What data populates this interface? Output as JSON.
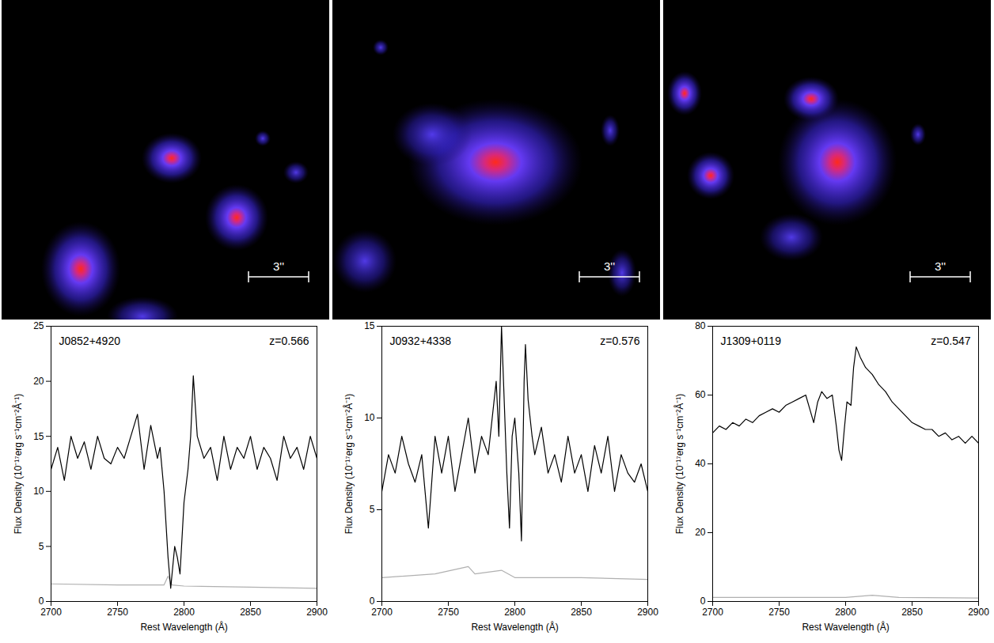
{
  "chart_data": [
    {
      "type": "line",
      "title": "J0852+4920",
      "annotation": "z=0.566",
      "scale_bar": "3''",
      "xlabel": "Rest Wavelength (Å)",
      "ylabel": "Flux Density (10⁻¹⁷erg s⁻¹cm⁻²Å⁻¹)",
      "xlim": [
        2700,
        2900
      ],
      "xticks": [
        2700,
        2750,
        2800,
        2850,
        2900
      ],
      "ylim": [
        0,
        25
      ],
      "yticks": [
        0,
        5,
        10,
        15,
        20,
        25
      ],
      "series": [
        {
          "color": "#000000",
          "x": [
            2700,
            2705,
            2710,
            2715,
            2720,
            2725,
            2730,
            2735,
            2740,
            2745,
            2750,
            2755,
            2760,
            2765,
            2770,
            2775,
            2780,
            2782,
            2785,
            2788,
            2790,
            2793,
            2795,
            2797,
            2800,
            2803,
            2805,
            2807,
            2810,
            2815,
            2820,
            2825,
            2830,
            2835,
            2840,
            2845,
            2850,
            2855,
            2860,
            2865,
            2870,
            2875,
            2880,
            2885,
            2890,
            2895,
            2900
          ],
          "values": [
            12,
            14,
            11,
            15,
            13,
            14.5,
            12,
            15,
            13,
            12.5,
            14,
            13,
            15,
            17,
            12,
            16,
            13,
            14,
            10,
            4,
            1.2,
            5,
            4,
            2.5,
            9,
            12,
            15,
            20.5,
            15,
            13,
            14,
            11,
            15,
            12,
            14,
            13,
            15,
            12,
            14,
            13,
            11,
            15,
            13,
            14,
            12,
            15,
            13
          ]
        },
        {
          "color": "#b0b0b0",
          "x": [
            2700,
            2750,
            2785,
            2788,
            2791,
            2800,
            2850,
            2900
          ],
          "values": [
            1.6,
            1.5,
            1.5,
            2.3,
            1.5,
            1.4,
            1.3,
            1.2
          ]
        }
      ]
    },
    {
      "type": "line",
      "title": "J0932+4338",
      "annotation": "z=0.576",
      "scale_bar": "3''",
      "xlabel": "Rest Wavelength (Å)",
      "ylabel": "Flux Density (10⁻¹⁷erg s⁻¹cm⁻²Å⁻¹)",
      "xlim": [
        2700,
        2900
      ],
      "xticks": [
        2700,
        2750,
        2800,
        2850,
        2900
      ],
      "ylim": [
        0,
        15
      ],
      "yticks": [
        0,
        5,
        10,
        15
      ],
      "series": [
        {
          "color": "#000000",
          "x": [
            2700,
            2705,
            2710,
            2715,
            2720,
            2725,
            2730,
            2735,
            2740,
            2745,
            2750,
            2755,
            2760,
            2765,
            2770,
            2775,
            2780,
            2783,
            2786,
            2788,
            2790,
            2792,
            2794,
            2796,
            2798,
            2800,
            2803,
            2805,
            2807,
            2808,
            2810,
            2813,
            2815,
            2820,
            2825,
            2830,
            2835,
            2840,
            2845,
            2850,
            2855,
            2860,
            2865,
            2870,
            2875,
            2880,
            2885,
            2890,
            2895,
            2900
          ],
          "values": [
            6,
            8,
            7,
            9,
            7.5,
            6.5,
            8,
            4,
            9,
            7,
            9,
            6,
            8,
            10,
            7,
            9,
            8,
            10,
            12,
            9,
            15,
            11,
            7,
            4,
            9,
            10,
            7,
            3.3,
            12,
            14,
            11,
            9,
            8,
            9.5,
            7,
            8,
            6.5,
            9,
            7,
            8,
            6,
            8.5,
            7,
            9,
            6,
            8,
            7,
            6.5,
            7.5,
            6
          ]
        },
        {
          "color": "#b0b0b0",
          "x": [
            2700,
            2740,
            2765,
            2770,
            2790,
            2800,
            2850,
            2900
          ],
          "values": [
            1.3,
            1.5,
            1.9,
            1.5,
            1.7,
            1.3,
            1.3,
            1.2
          ]
        }
      ]
    },
    {
      "type": "line",
      "title": "J1309+0119",
      "annotation": "z=0.547",
      "scale_bar": "3''",
      "xlabel": "Rest Wavelength (Å)",
      "ylabel": "Flux Density (10⁻¹⁷erg s⁻¹cm⁻²Å⁻¹)",
      "xlim": [
        2700,
        2900
      ],
      "xticks": [
        2700,
        2750,
        2800,
        2850,
        2900
      ],
      "ylim": [
        0,
        80
      ],
      "yticks": [
        0,
        20,
        40,
        60,
        80
      ],
      "series": [
        {
          "color": "#000000",
          "x": [
            2700,
            2705,
            2710,
            2715,
            2720,
            2725,
            2730,
            2735,
            2740,
            2745,
            2750,
            2755,
            2760,
            2765,
            2770,
            2773,
            2776,
            2779,
            2782,
            2786,
            2790,
            2793,
            2795,
            2797,
            2799,
            2801,
            2804,
            2806,
            2808,
            2811,
            2815,
            2820,
            2825,
            2830,
            2835,
            2840,
            2845,
            2850,
            2855,
            2860,
            2865,
            2870,
            2875,
            2880,
            2885,
            2890,
            2895,
            2900
          ],
          "values": [
            49,
            51,
            50,
            52,
            51,
            53,
            52,
            54,
            55,
            56,
            55,
            57,
            58,
            59,
            60,
            56,
            52,
            58,
            61,
            59,
            60,
            51,
            44,
            41,
            50,
            58,
            57,
            68,
            74,
            71,
            68,
            66,
            63,
            61,
            58,
            56,
            54,
            52,
            51,
            50,
            50,
            48,
            49,
            47,
            48,
            46,
            48,
            46
          ]
        },
        {
          "color": "#b0b0b0",
          "x": [
            2700,
            2800,
            2820,
            2840,
            2900
          ],
          "values": [
            1.2,
            1.2,
            1.8,
            1.2,
            1.0
          ]
        }
      ]
    }
  ]
}
